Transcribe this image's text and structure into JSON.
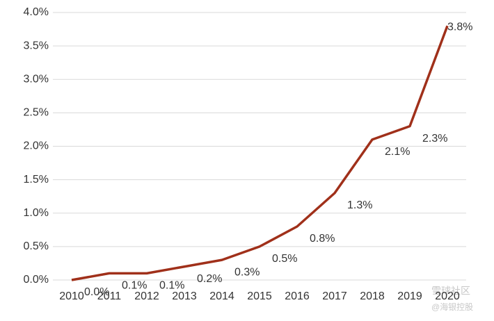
{
  "chart_data": {
    "type": "line",
    "categories": [
      "2010",
      "2011",
      "2012",
      "2013",
      "2014",
      "2015",
      "2016",
      "2017",
      "2018",
      "2019",
      "2020"
    ],
    "series": [
      {
        "color": "#a0301a",
        "values": [
          0.0,
          0.1,
          0.1,
          0.2,
          0.3,
          0.5,
          0.8,
          1.3,
          2.1,
          2.3,
          3.8
        ],
        "value_labels": [
          "0.0%",
          "0.1%",
          "0.1%",
          "0.2%",
          "0.3%",
          "0.5%",
          "0.8%",
          "1.3%",
          "2.1%",
          "2.3%",
          "3.8%"
        ]
      }
    ],
    "ylim": [
      0,
      4.0
    ],
    "yticks": [
      {
        "value": 0,
        "label": "0.0%"
      },
      {
        "value": 0.5,
        "label": "0.5%"
      },
      {
        "value": 1.0,
        "label": "1.0%"
      },
      {
        "value": 1.5,
        "label": "1.5%"
      },
      {
        "value": 2.0,
        "label": "2.0%"
      },
      {
        "value": 2.5,
        "label": "2.5%"
      },
      {
        "value": 3.0,
        "label": "3.0%"
      },
      {
        "value": 3.5,
        "label": "3.5%"
      },
      {
        "value": 4.0,
        "label": "4.0%"
      }
    ],
    "grid": true,
    "watermark": [
      "雪球社区",
      "@海银控股"
    ]
  }
}
